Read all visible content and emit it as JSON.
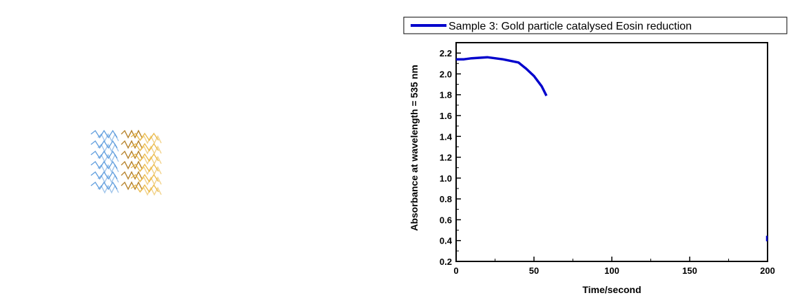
{
  "chart_data": {
    "type": "line",
    "title": "",
    "xlabel": "Time/second",
    "ylabel": "Absorbance at wavelength = 535 nm",
    "xlim": [
      0,
      200
    ],
    "ylim": [
      0.2,
      2.3
    ],
    "x_ticks": [
      0,
      50,
      100,
      150,
      200
    ],
    "x_tick_labels": [
      "0",
      "50",
      "100",
      "150",
      "200"
    ],
    "y_ticks": [
      0.2,
      0.4,
      0.6,
      0.8,
      1.0,
      1.2,
      1.4,
      1.6,
      1.8,
      2.0,
      2.2
    ],
    "y_tick_labels": [
      "0.2",
      "0.4",
      "0.6",
      "0.8",
      "1.0",
      "1.2",
      "1.4",
      "1.6",
      "1.8",
      "2.0",
      "2.2"
    ],
    "grid": false,
    "legend_position": "top",
    "series": [
      {
        "name": "Sample 3: Gold particle catalysed Eosin reduction",
        "color": "#0000cc",
        "x": [
          0,
          5,
          10,
          20,
          30,
          40,
          45,
          50,
          55,
          58
        ],
        "y": [
          2.14,
          2.14,
          2.15,
          2.16,
          2.14,
          2.11,
          2.05,
          1.98,
          1.88,
          1.79
        ]
      }
    ],
    "stray_marks": [
      {
        "x": 200,
        "y": 0.42,
        "color": "#0000cc"
      }
    ]
  },
  "decoration": {
    "icon": "molecular-wave-pattern-icon",
    "colors": [
      "#4a90d9",
      "#e8b030",
      "#b07818"
    ]
  }
}
